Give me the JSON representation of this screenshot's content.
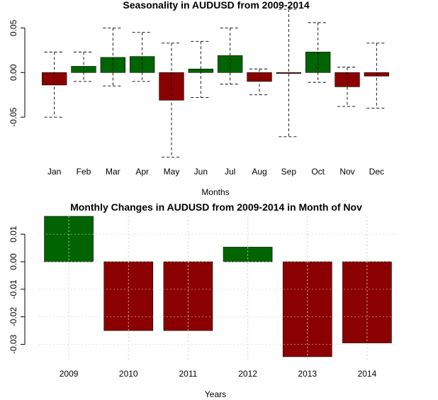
{
  "colors": {
    "positive": "#006400",
    "negative": "#8b0000",
    "axis": "#000000",
    "grid": "#d3d3d3"
  },
  "chart_data": [
    {
      "type": "bar",
      "title": "Seasonality in AUDUSD from 2009-2014",
      "xlabel": "Months",
      "ylabel": "",
      "categories": [
        "Jan",
        "Feb",
        "Mar",
        "Apr",
        "May",
        "Jun",
        "Jul",
        "Aug",
        "Sep",
        "Oct",
        "Nov",
        "Dec"
      ],
      "values": [
        -0.014,
        0.007,
        0.017,
        0.018,
        -0.031,
        0.004,
        0.019,
        -0.01,
        -0.001,
        0.023,
        -0.016,
        -0.004
      ],
      "error_low": [
        -0.05,
        -0.01,
        -0.015,
        -0.01,
        -0.095,
        -0.028,
        -0.013,
        -0.025,
        -0.072,
        -0.011,
        -0.038,
        -0.04
      ],
      "error_high": [
        0.023,
        0.023,
        0.05,
        0.045,
        0.033,
        0.035,
        0.05,
        0.004,
        0.071,
        0.056,
        0.006,
        0.033
      ],
      "ylim": [
        -0.1,
        0.075
      ],
      "yticks": [
        -0.05,
        0.0,
        0.05
      ],
      "ytick_labels": [
        "-0.05",
        "0.00",
        "0.05"
      ],
      "grid": false
    },
    {
      "type": "bar",
      "title": "Monthly Changes in AUDUSD from 2009-2014 in Month of Nov",
      "xlabel": "Years",
      "ylabel": "",
      "categories": [
        "2009",
        "2010",
        "2011",
        "2012",
        "2013",
        "2014"
      ],
      "values": [
        0.0165,
        -0.025,
        -0.025,
        0.0053,
        -0.0345,
        -0.0295
      ],
      "ylim": [
        -0.0358,
        0.0165
      ],
      "yticks": [
        -0.03,
        -0.02,
        -0.01,
        0.0,
        0.01
      ],
      "ytick_labels": [
        "-0.03",
        "-0.02",
        "-0.01",
        "0.00",
        "0.01"
      ],
      "grid": true
    }
  ]
}
